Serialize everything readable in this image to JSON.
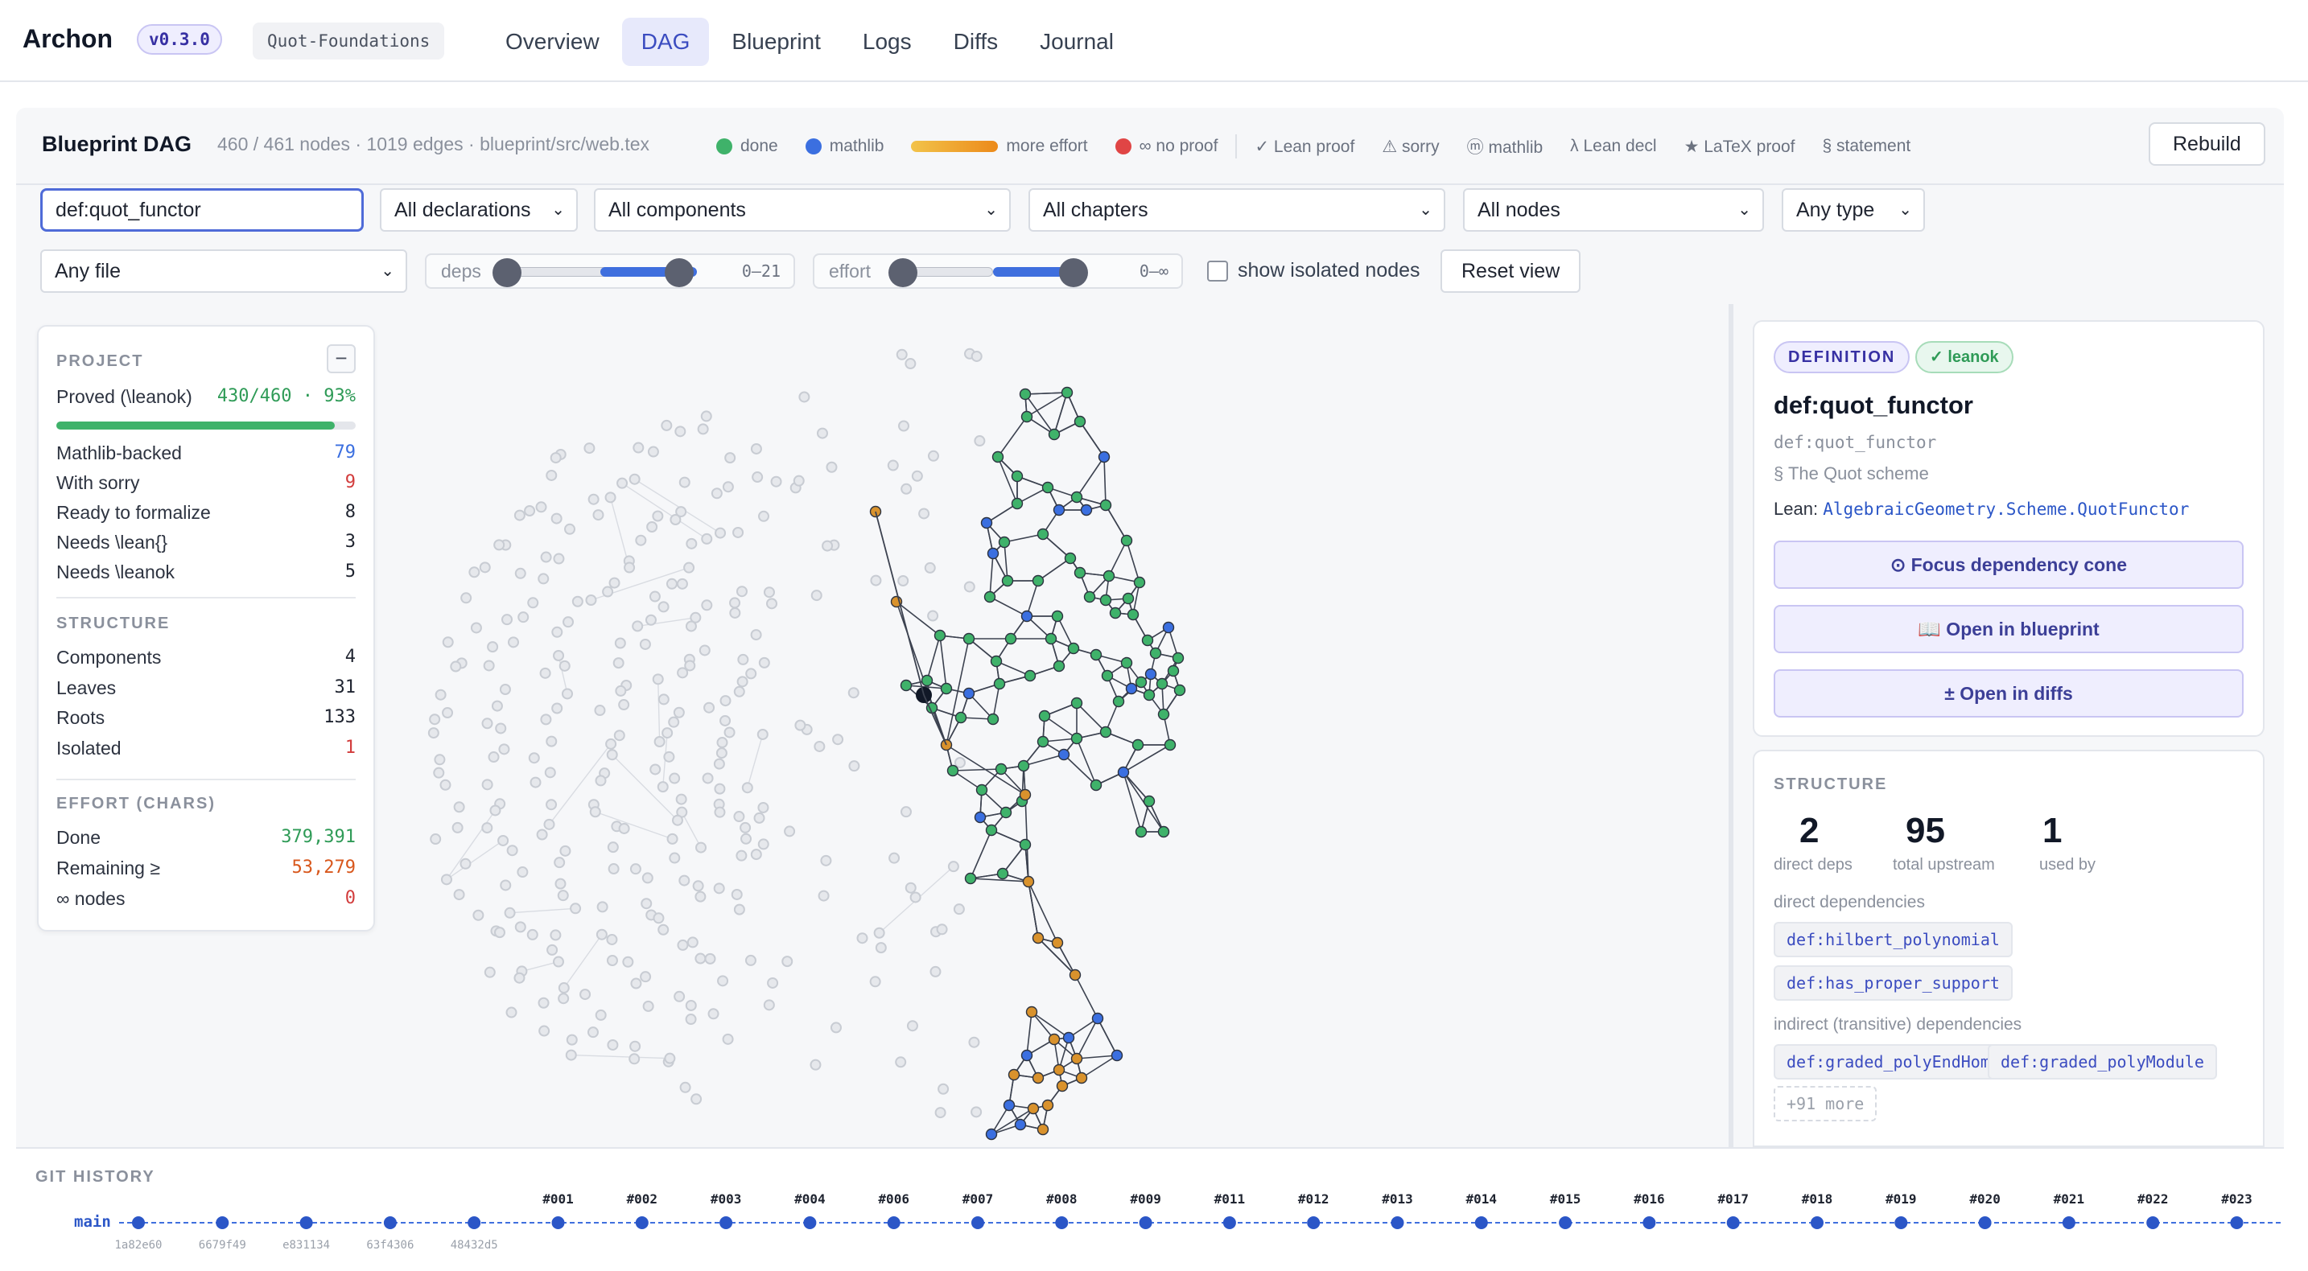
{
  "app": {
    "name": "Archon",
    "version": "v0.3.0",
    "project": "Quot-Foundations",
    "tabs": [
      {
        "label": "Overview",
        "active": false
      },
      {
        "label": "DAG",
        "active": true
      },
      {
        "label": "Blueprint",
        "active": false
      },
      {
        "label": "Logs",
        "active": false
      },
      {
        "label": "Diffs",
        "active": false
      },
      {
        "label": "Journal",
        "active": false
      }
    ]
  },
  "dag": {
    "title": "Blueprint DAG",
    "stats": "460 / 461 nodes · 1019 edges · blueprint/src/web.tex",
    "rebuild_label": "Rebuild",
    "legend": {
      "done": "done",
      "mathlib": "mathlib",
      "more_effort": "more effort",
      "no_proof": "∞ no proof",
      "lean_proof": "✓ Lean proof",
      "sorry": "⚠ sorry",
      "mathlib_icon": "ⓜ mathlib",
      "lean_decl": "λ Lean decl",
      "latex_proof": "★ LaTeX proof",
      "statement": "§ statement"
    },
    "colors": {
      "done": "#3fb26a",
      "mathlib": "#3b6fe0",
      "no_proof": "#e04545",
      "effort": "#d9922c"
    }
  },
  "filters": {
    "search_value": "def:quot_functor",
    "declarations": "All declarations",
    "components": "All components",
    "chapters": "All chapters",
    "nodes": "All nodes",
    "type": "Any type",
    "file": "Any file",
    "deps_label": "deps",
    "deps_range": "0–21",
    "deps_low": 0,
    "deps_high": 21,
    "effort_label": "effort",
    "effort_range": "0–∞",
    "show_isolated": "show isolated nodes",
    "show_isolated_checked": false,
    "reset": "Reset view"
  },
  "project_card": {
    "heading": "PROJECT",
    "collapse": "−",
    "proved_label": "Proved (\\leanok)",
    "proved_value": "430/460 · 93%",
    "proved_fraction": 0.93,
    "rows": [
      {
        "label": "Mathlib-backed",
        "value": "79",
        "color": "#3b6fe0"
      },
      {
        "label": "With sorry",
        "value": "9",
        "color": "#d23c3c"
      },
      {
        "label": "Ready to formalize",
        "value": "8",
        "color": "#1f2430"
      },
      {
        "label": "Needs \\lean{}",
        "value": "3",
        "color": "#1f2430"
      },
      {
        "label": "Needs \\leanok",
        "value": "5",
        "color": "#1f2430"
      }
    ],
    "structure_heading": "STRUCTURE",
    "structure": [
      {
        "label": "Components",
        "value": "4",
        "color": "#1f2430"
      },
      {
        "label": "Leaves",
        "value": "31",
        "color": "#1f2430"
      },
      {
        "label": "Roots",
        "value": "133",
        "color": "#1f2430"
      },
      {
        "label": "Isolated",
        "value": "1",
        "color": "#d23c3c"
      }
    ],
    "effort_heading": "EFFORT (CHARS)",
    "effort": [
      {
        "label": "Done",
        "value": "379,391",
        "color": "#2f9b57"
      },
      {
        "label": "Remaining ≥",
        "value": "53,279",
        "color": "#d8571c"
      },
      {
        "label": "∞ nodes",
        "value": "0",
        "color": "#d23c3c"
      }
    ]
  },
  "detail": {
    "kind_badge": "DEFINITION",
    "status_badge": "✓ leanok",
    "title": "def:quot_functor",
    "label": "def:quot_functor",
    "section": "§ The Quot scheme",
    "lean_prefix": "Lean:",
    "lean_name": "AlgebraicGeometry.Scheme.QuotFunctor",
    "focus_btn": "⊙ Focus dependency cone",
    "blueprint_btn": "📖 Open in blueprint",
    "diffs_btn": "± Open in diffs",
    "structure_heading": "STRUCTURE",
    "direct_deps": "2",
    "direct_deps_label": "direct deps",
    "total_upstream": "95",
    "total_upstream_label": "total upstream",
    "used_by": "1",
    "used_by_label": "used by",
    "direct_heading": "direct dependencies",
    "direct": [
      "def:hilbert_polynomial",
      "def:has_proper_support"
    ],
    "indirect_heading": "indirect (transitive) dependencies",
    "indirect": [
      "def:graded_polyEndHom",
      "def:graded_polyModule"
    ],
    "more": "+91 more"
  },
  "git": {
    "heading": "GIT HISTORY",
    "branch": "main",
    "commits": [
      "1a82e60",
      "6679f49",
      "e831134",
      "63f4306",
      "48432d5"
    ],
    "tags": [
      "#001",
      "#002",
      "#003",
      "#004",
      "#006",
      "#007",
      "#008",
      "#009",
      "#011",
      "#012",
      "#013",
      "#014",
      "#015",
      "#016",
      "#017",
      "#018",
      "#019",
      "#020",
      "#021",
      "#022",
      "#023"
    ]
  }
}
